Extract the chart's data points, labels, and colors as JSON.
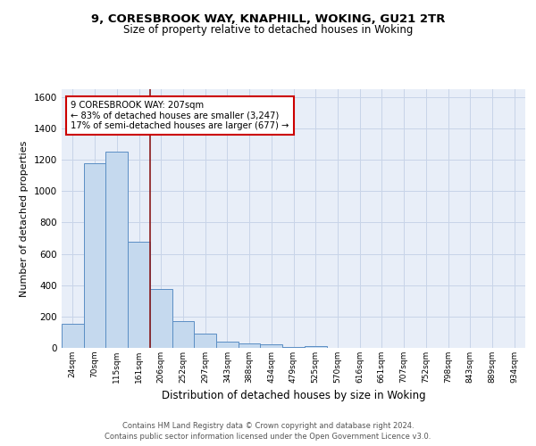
{
  "title1": "9, CORESBROOK WAY, KNAPHILL, WOKING, GU21 2TR",
  "title2": "Size of property relative to detached houses in Woking",
  "xlabel": "Distribution of detached houses by size in Woking",
  "ylabel": "Number of detached properties",
  "categories": [
    "24sqm",
    "70sqm",
    "115sqm",
    "161sqm",
    "206sqm",
    "252sqm",
    "297sqm",
    "343sqm",
    "388sqm",
    "434sqm",
    "479sqm",
    "525sqm",
    "570sqm",
    "616sqm",
    "661sqm",
    "707sqm",
    "752sqm",
    "798sqm",
    "843sqm",
    "889sqm",
    "934sqm"
  ],
  "values": [
    155,
    1175,
    1250,
    675,
    375,
    170,
    90,
    37,
    28,
    20,
    8,
    10,
    0,
    0,
    0,
    0,
    0,
    0,
    0,
    0,
    0
  ],
  "bar_color": "#c5d9ee",
  "bar_edge_color": "#5b8ec4",
  "grid_color": "#c8d4e8",
  "bg_color": "#e8eef8",
  "red_line_x": 3.5,
  "property_line_label": "9 CORESBROOK WAY: 207sqm",
  "annotation_line1": "← 83% of detached houses are smaller (3,247)",
  "annotation_line2": "17% of semi-detached houses are larger (677) →",
  "annotation_box_color": "#ffffff",
  "annotation_box_edge": "#cc0000",
  "property_line_color": "#8b1a1a",
  "ylim": [
    0,
    1650
  ],
  "yticks": [
    0,
    200,
    400,
    600,
    800,
    1000,
    1200,
    1400,
    1600
  ],
  "footer1": "Contains HM Land Registry data © Crown copyright and database right 2024.",
  "footer2": "Contains public sector information licensed under the Open Government Licence v3.0."
}
